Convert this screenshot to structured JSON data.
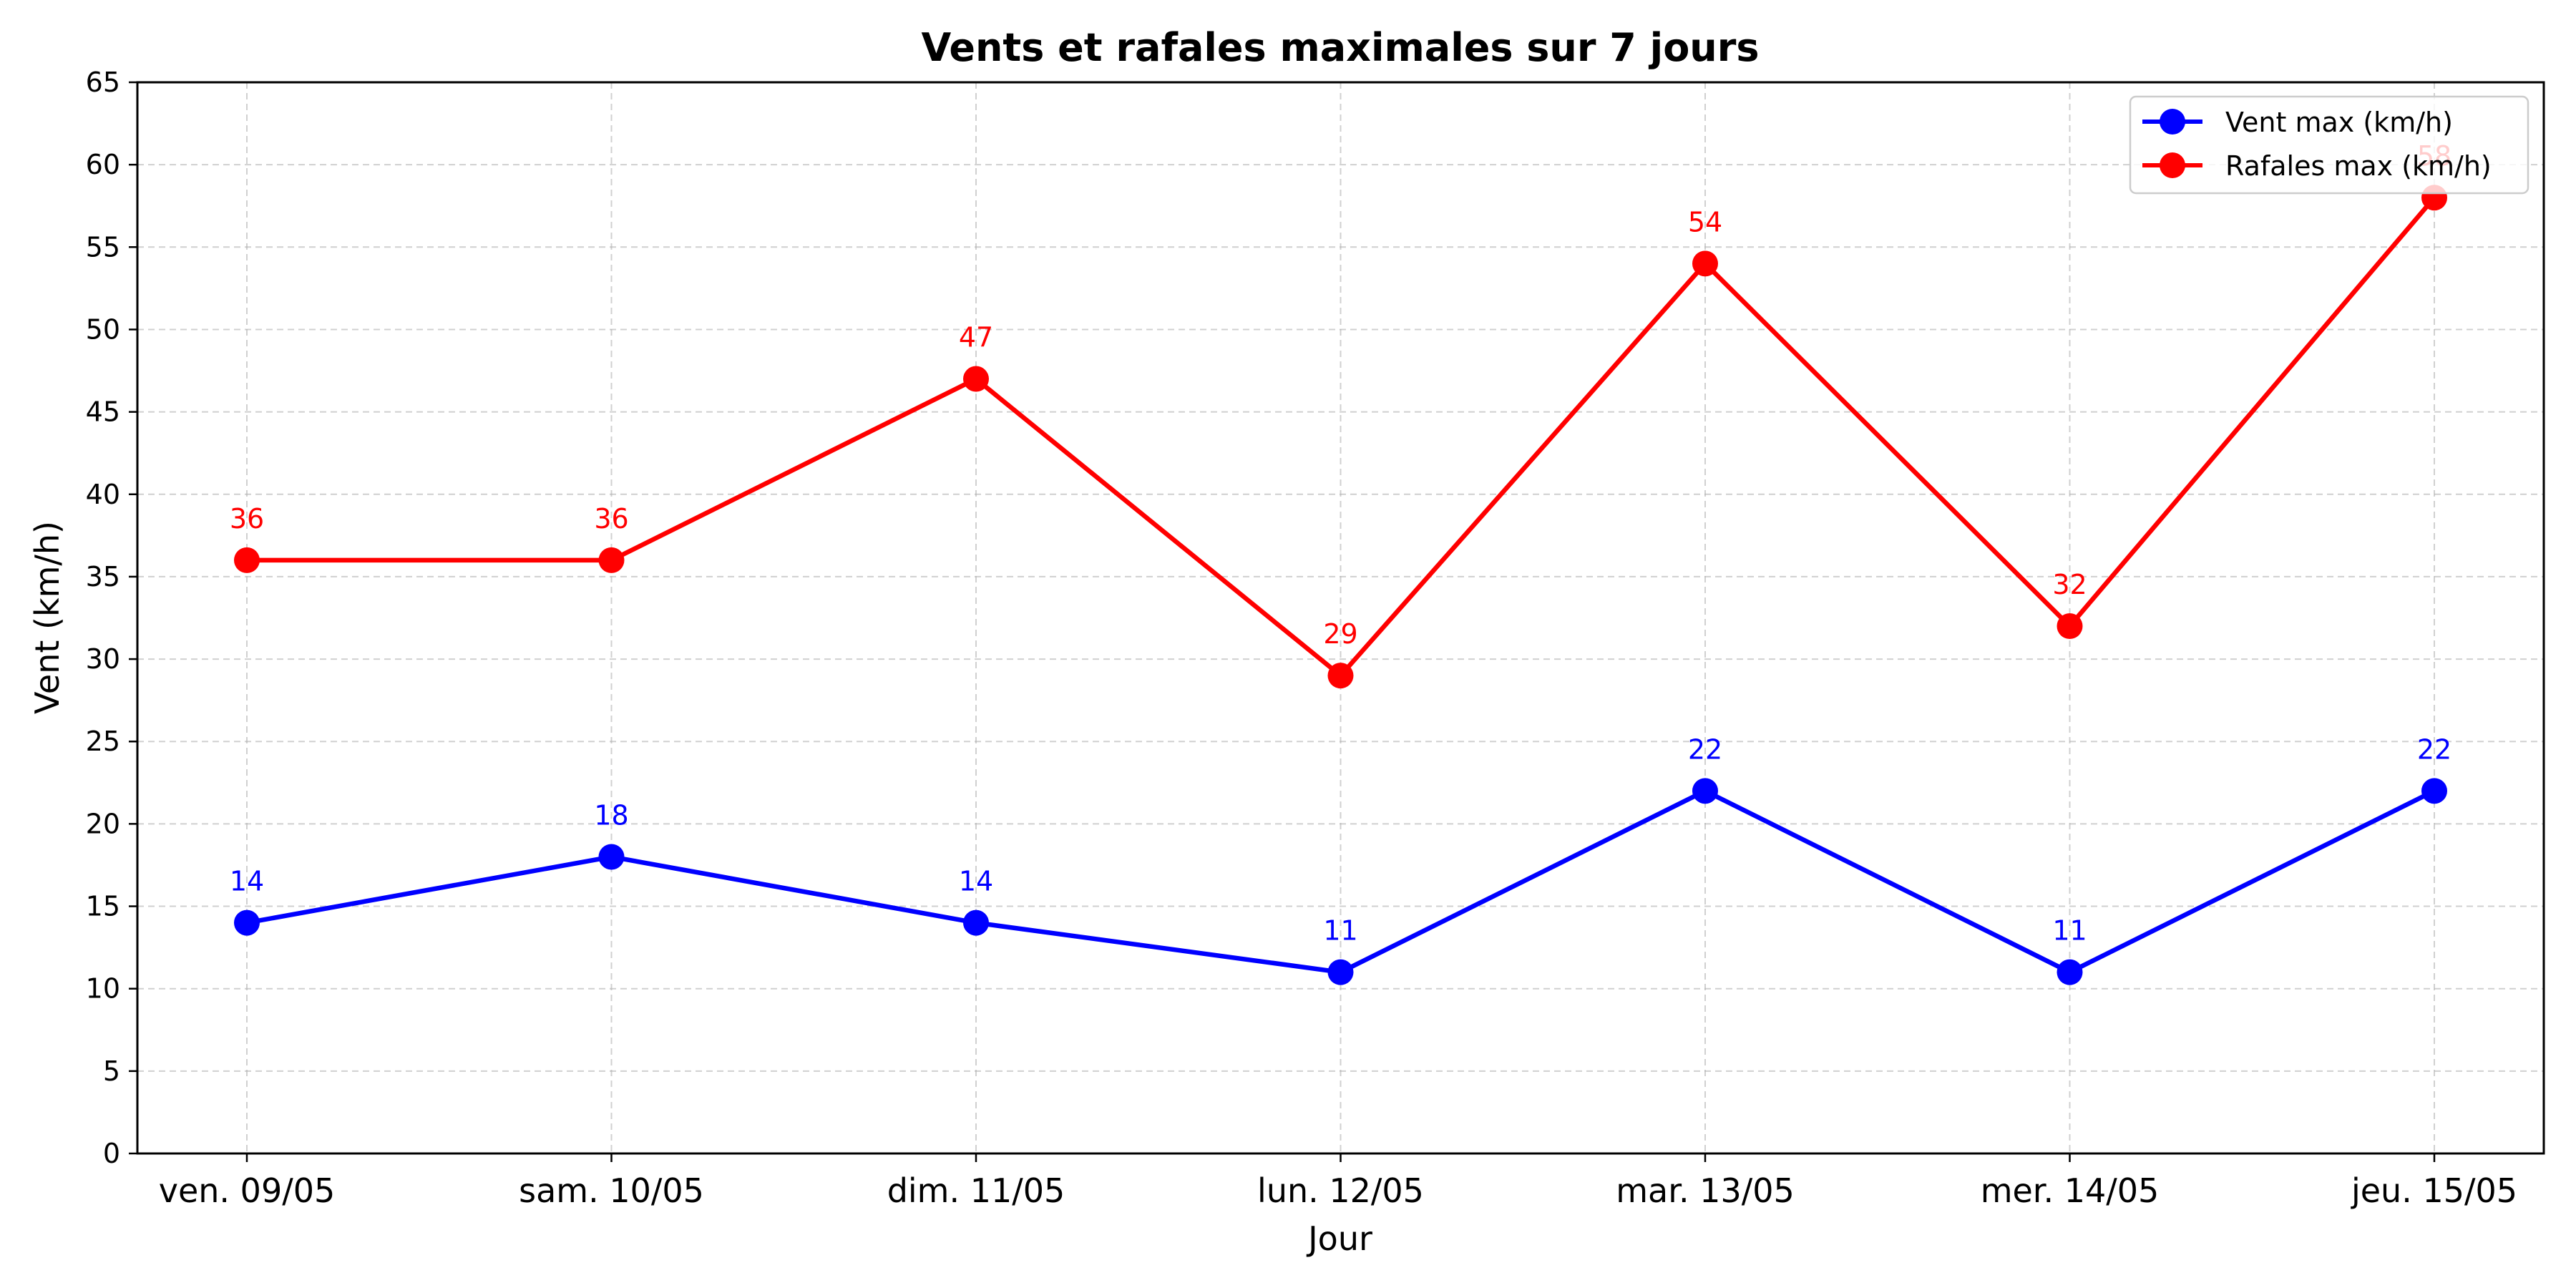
{
  "chart_data": {
    "type": "line",
    "title": "Vents et rafales maximales sur 7 jours",
    "xlabel": "Jour",
    "ylabel": "Vent (km/h)",
    "categories": [
      "ven. 09/05",
      "sam. 10/05",
      "dim. 11/05",
      "lun. 12/05",
      "mar. 13/05",
      "mer. 14/05",
      "jeu. 15/05"
    ],
    "ylim": [
      0,
      65
    ],
    "yticks": [
      0,
      5,
      10,
      15,
      20,
      25,
      30,
      35,
      40,
      45,
      50,
      55,
      60,
      65
    ],
    "grid": true,
    "legend_position": "top-right",
    "series": [
      {
        "name": "Vent max (km/h)",
        "color": "#0000ff",
        "values": [
          14,
          18,
          14,
          11,
          22,
          11,
          22
        ]
      },
      {
        "name": "Rafales max (km/h)",
        "color": "#ff0000",
        "values": [
          36,
          36,
          47,
          29,
          54,
          32,
          58
        ]
      }
    ]
  }
}
